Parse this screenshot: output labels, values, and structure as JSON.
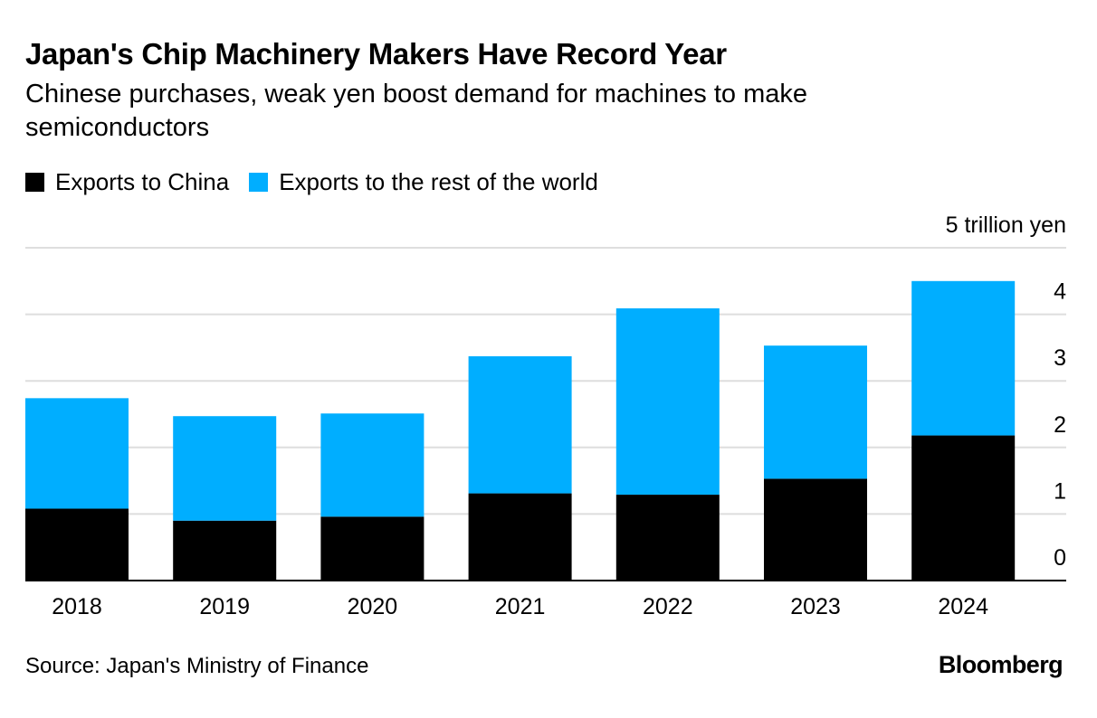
{
  "header": {
    "title": "Japan's Chip Machinery Makers Have Record Year",
    "subtitle": "Chinese purchases, weak yen boost demand for machines to make semiconductors"
  },
  "colors": {
    "china": "#000000",
    "rest_of_world": "#00aeff",
    "gridline": "#dedede",
    "axis": "#000000"
  },
  "chart_data": {
    "type": "bar",
    "stacked": true,
    "title": "Japan's Chip Machinery Makers Have Record Year",
    "subtitle": "Chinese purchases, weak yen boost demand for machines to make semiconductors",
    "categories": [
      "2018",
      "2019",
      "2020",
      "2021",
      "2022",
      "2023",
      "2024"
    ],
    "series": [
      {
        "name": "Exports to China",
        "color": "#000000",
        "values": [
          1.08,
          0.9,
          0.96,
          1.31,
          1.29,
          1.53,
          2.18
        ]
      },
      {
        "name": "Exports to the rest of the world",
        "color": "#00aeff",
        "values": [
          1.66,
          1.57,
          1.55,
          2.06,
          2.8,
          2.0,
          2.32
        ]
      }
    ],
    "unit_label": "5 trillion yen",
    "y_ticks": [
      0,
      1,
      2,
      3,
      4
    ],
    "ylim": [
      0,
      5
    ],
    "grid": true,
    "y_axis_side": "right",
    "xlabel": "",
    "ylabel": ""
  },
  "footer": {
    "source": "Source: Japan's Ministry of Finance",
    "brand": "Bloomberg"
  }
}
